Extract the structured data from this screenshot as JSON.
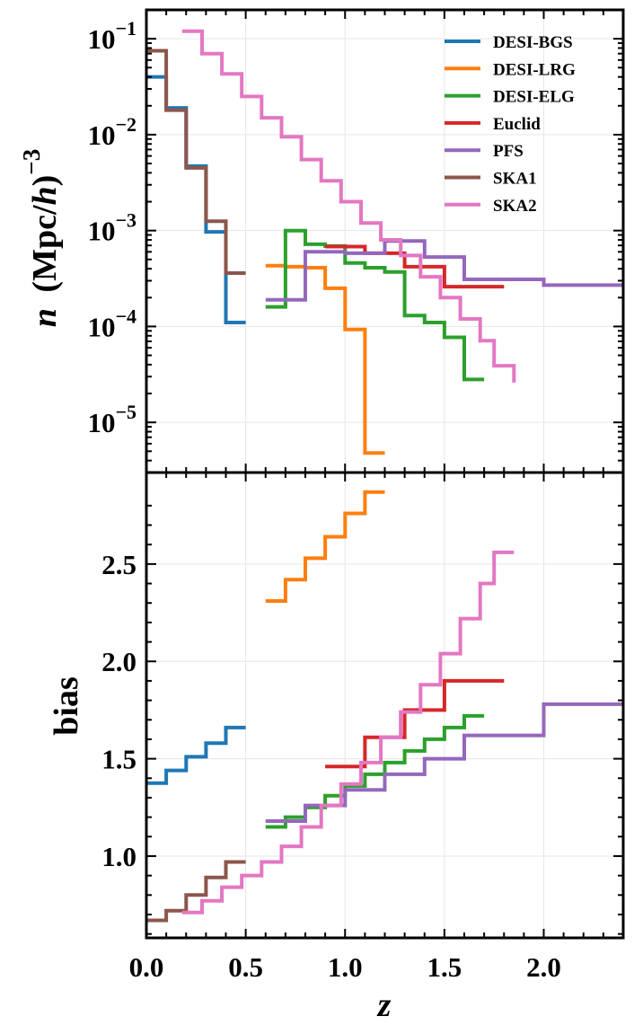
{
  "chart_data": [
    {
      "type": "line",
      "drawstyle": "steps-post",
      "ylabel": "n (Mpc/h)^-3",
      "ylabel_parts": {
        "n": "n",
        "open": "(Mpc/",
        "h": "h",
        "close": ")",
        "exp": "−3"
      },
      "yscale": "log",
      "xlim": [
        0.0,
        2.4
      ],
      "ylim": [
        3e-06,
        0.2
      ],
      "yticks": [
        {
          "value": 1e-05,
          "base": "10",
          "exp": "−5"
        },
        {
          "value": 0.0001,
          "base": "10",
          "exp": "−4"
        },
        {
          "value": 0.001,
          "base": "10",
          "exp": "−3"
        },
        {
          "value": 0.01,
          "base": "10",
          "exp": "−2"
        },
        {
          "value": 0.1,
          "base": "10",
          "exp": "−1"
        }
      ],
      "legend_position": "top-right",
      "series": [
        {
          "name": "DESI-BGS",
          "color": "#1f77b4",
          "edges": [
            0.0,
            0.1,
            0.2,
            0.3,
            0.4,
            0.5
          ],
          "values": [
            0.04,
            0.019,
            0.0047,
            0.00097,
            0.00011
          ]
        },
        {
          "name": "DESI-LRG",
          "color": "#ff7f0e",
          "edges": [
            0.6,
            0.7,
            0.8,
            0.9,
            1.0,
            1.1,
            1.2
          ],
          "values": [
            0.00043,
            0.00042,
            0.00041,
            0.00025,
            9.3e-05,
            4.8e-06
          ]
        },
        {
          "name": "DESI-ELG",
          "color": "#2ca02c",
          "edges": [
            0.6,
            0.7,
            0.8,
            0.9,
            1.0,
            1.1,
            1.2,
            1.3,
            1.4,
            1.5,
            1.6,
            1.7
          ],
          "values": [
            0.00016,
            0.001,
            0.00072,
            0.00069,
            0.00046,
            0.00041,
            0.00037,
            0.00013,
            0.00011,
            7.7e-05,
            2.8e-05
          ]
        },
        {
          "name": "Euclid",
          "color": "#d62728",
          "edges": [
            0.9,
            1.1,
            1.3,
            1.5,
            1.8
          ],
          "values": [
            0.00068,
            0.00058,
            0.00042,
            0.00026
          ]
        },
        {
          "name": "PFS",
          "color": "#9467bd",
          "edges": [
            0.6,
            0.8,
            1.0,
            1.2,
            1.4,
            1.6,
            2.0,
            2.4
          ],
          "values": [
            0.00019,
            0.0006,
            0.00058,
            0.00078,
            0.00053,
            0.00031,
            0.00027
          ]
        },
        {
          "name": "SKA1",
          "color": "#8c564b",
          "edges": [
            0.0,
            0.1,
            0.2,
            0.3,
            0.4,
            0.5
          ],
          "values": [
            0.075,
            0.018,
            0.0045,
            0.00125,
            0.00036
          ]
        },
        {
          "name": "SKA2",
          "color": "#e377c2",
          "edges": [
            0.18,
            0.28,
            0.38,
            0.48,
            0.58,
            0.68,
            0.78,
            0.88,
            0.98,
            1.08,
            1.18,
            1.28,
            1.38,
            1.48,
            1.58,
            1.68,
            1.75,
            1.85
          ],
          "values": [
            0.12,
            0.07,
            0.043,
            0.025,
            0.015,
            0.0095,
            0.0055,
            0.0033,
            0.002,
            0.0012,
            0.0008,
            0.00055,
            0.00033,
            0.0002,
            0.00012,
            7.1e-05,
            3.9e-05,
            2.6e-05
          ]
        }
      ]
    },
    {
      "type": "line",
      "drawstyle": "steps-post",
      "xlabel": "z",
      "ylabel": "bias",
      "xlim": [
        0.0,
        2.4
      ],
      "ylim": [
        0.58,
        2.97
      ],
      "xticks": [
        {
          "value": 0.0,
          "label": "0.0"
        },
        {
          "value": 0.5,
          "label": "0.5"
        },
        {
          "value": 1.0,
          "label": "1.0"
        },
        {
          "value": 1.5,
          "label": "1.5"
        },
        {
          "value": 2.0,
          "label": "2.0"
        }
      ],
      "yticks": [
        {
          "value": 1.0,
          "label": "1.0"
        },
        {
          "value": 1.5,
          "label": "1.5"
        },
        {
          "value": 2.0,
          "label": "2.0"
        },
        {
          "value": 2.5,
          "label": "2.5"
        }
      ],
      "series": [
        {
          "name": "DESI-BGS",
          "color": "#1f77b4",
          "edges": [
            0.0,
            0.1,
            0.2,
            0.3,
            0.4,
            0.5
          ],
          "values": [
            1.375,
            1.44,
            1.51,
            1.58,
            1.66
          ]
        },
        {
          "name": "DESI-LRG",
          "color": "#ff7f0e",
          "edges": [
            0.6,
            0.7,
            0.8,
            0.9,
            1.0,
            1.1,
            1.2
          ],
          "values": [
            2.31,
            2.42,
            2.53,
            2.64,
            2.76,
            2.87
          ]
        },
        {
          "name": "DESI-ELG",
          "color": "#2ca02c",
          "edges": [
            0.6,
            0.7,
            0.8,
            0.9,
            1.0,
            1.1,
            1.2,
            1.3,
            1.4,
            1.5,
            1.6,
            1.7
          ],
          "values": [
            1.15,
            1.2,
            1.25,
            1.31,
            1.36,
            1.42,
            1.48,
            1.54,
            1.6,
            1.66,
            1.72
          ]
        },
        {
          "name": "Euclid",
          "color": "#d62728",
          "edges": [
            0.9,
            1.1,
            1.3,
            1.5,
            1.8
          ],
          "values": [
            1.46,
            1.61,
            1.75,
            1.9
          ]
        },
        {
          "name": "PFS",
          "color": "#9467bd",
          "edges": [
            0.6,
            0.8,
            1.0,
            1.2,
            1.4,
            1.6,
            2.0,
            2.4
          ],
          "values": [
            1.18,
            1.26,
            1.34,
            1.42,
            1.5,
            1.62,
            1.78
          ]
        },
        {
          "name": "SKA1",
          "color": "#8c564b",
          "edges": [
            0.0,
            0.1,
            0.2,
            0.3,
            0.4,
            0.5
          ],
          "values": [
            0.67,
            0.72,
            0.8,
            0.89,
            0.97
          ]
        },
        {
          "name": "SKA2",
          "color": "#e377c2",
          "edges": [
            0.18,
            0.28,
            0.38,
            0.48,
            0.58,
            0.68,
            0.78,
            0.88,
            0.98,
            1.08,
            1.18,
            1.28,
            1.38,
            1.48,
            1.58,
            1.68,
            1.75,
            1.85
          ],
          "values": [
            0.71,
            0.77,
            0.84,
            0.9,
            0.97,
            1.05,
            1.15,
            1.26,
            1.37,
            1.48,
            1.61,
            1.74,
            1.88,
            2.04,
            2.22,
            2.4,
            2.56,
            2.56
          ]
        }
      ]
    }
  ]
}
